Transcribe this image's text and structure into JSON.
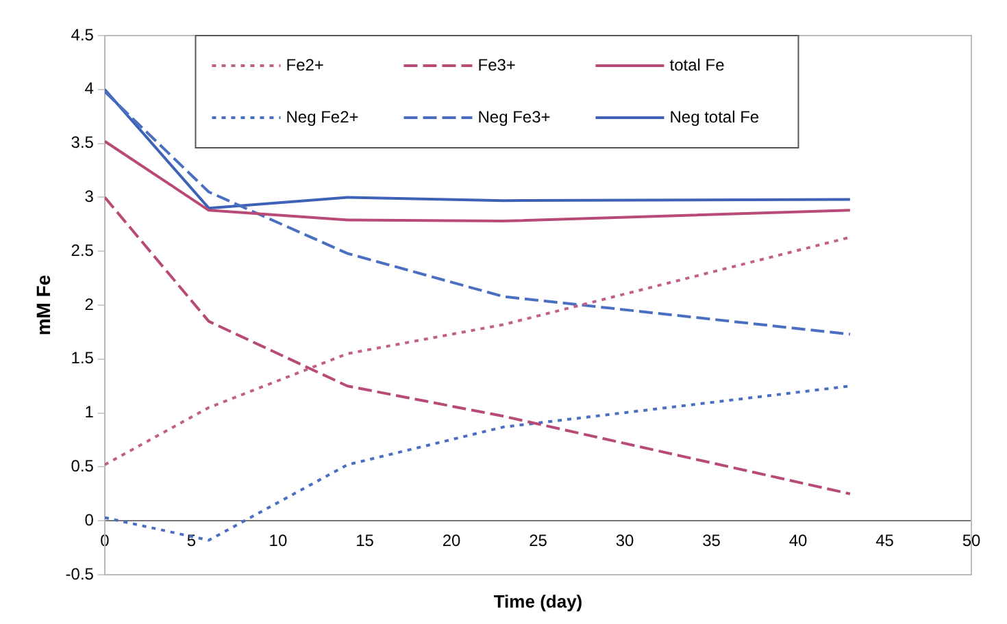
{
  "chart_data": {
    "type": "line",
    "xlabel": "Time (day)",
    "ylabel": "mM Fe",
    "xlim": [
      0,
      50
    ],
    "xticks": [
      0,
      5,
      10,
      15,
      20,
      25,
      30,
      35,
      40,
      45,
      50
    ],
    "ylim": [
      -0.5,
      4.5
    ],
    "yticks": [
      -0.5,
      0,
      0.5,
      1,
      1.5,
      2,
      2.5,
      3,
      3.5,
      4,
      4.5
    ],
    "x": [
      0,
      6,
      14,
      23,
      43
    ],
    "grid": false,
    "legend": "top",
    "marker": "none",
    "series": [
      {
        "name": "Fe2+",
        "color": "#c0608a",
        "line_style": "dotted",
        "values": [
          0.52,
          1.05,
          1.55,
          1.82,
          2.63
        ]
      },
      {
        "name": "Fe3+",
        "color": "#b84a78",
        "line_style": "dashed",
        "values": [
          3.0,
          1.85,
          1.25,
          0.97,
          0.25
        ]
      },
      {
        "name": "total Fe",
        "color": "#b84a78",
        "line_style": "solid",
        "values": [
          3.52,
          2.88,
          2.79,
          2.78,
          2.88
        ]
      },
      {
        "name": "Neg Fe2+",
        "color": "#4a6fc0",
        "line_style": "dotted",
        "values": [
          0.03,
          -0.18,
          0.52,
          0.87,
          1.25
        ]
      },
      {
        "name": "Neg Fe3+",
        "color": "#4a6fc0",
        "line_style": "dashed",
        "values": [
          3.98,
          3.05,
          2.48,
          2.08,
          1.73
        ]
      },
      {
        "name": "Neg total Fe",
        "color": "#3d62b8",
        "line_style": "solid",
        "values": [
          4.0,
          2.9,
          3.0,
          2.97,
          2.98
        ]
      }
    ]
  }
}
